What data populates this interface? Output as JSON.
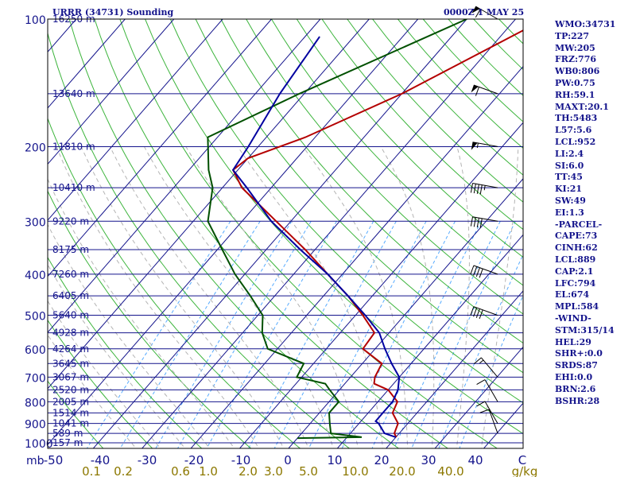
{
  "header": {
    "title": "URRR (34731) Sounding",
    "time": "0000Z  1 MAY 25"
  },
  "indices": [
    "WMO:34731",
    "TP:227",
    "MW:205",
    "FRZ:776",
    "WB0:806",
    "PW:0.75",
    "RH:59.1",
    "MAXT:20.1",
    "TH:5483",
    "L57:5.6",
    "LCL:952",
    "LI:2.4",
    "SI:6.0",
    "TT:45",
    "KI:21",
    "SW:49",
    "EI:1.3",
    "-PARCEL-",
    "CAPE:73",
    "CINH:62",
    "LCL:889",
    "CAP:2.1",
    "LFC:794",
    "EL:674",
    "MPL:584",
    "-WIND-",
    "STM:315/14",
    "HEL:29",
    "SHR+:0.0",
    "SRDS:87",
    "EHI:0.0",
    "BRN:2.6",
    "BSHR:28"
  ],
  "colors": {
    "frame": "#000000",
    "isobar": "#14148c",
    "isotherm": "#14148c",
    "dry_adiabat": "#3cb43c",
    "moist_adiabat": "#b4b4b4",
    "mixing_ratio": "#55aaff",
    "temperature": "#b40000",
    "dewpoint": "#005000",
    "parcel": "#0000a0",
    "axis_text": "#14148c",
    "mixing_text": "#8c7800"
  },
  "chart_data": {
    "type": "skew-t log-p",
    "y_axis": {
      "scale": "log",
      "ylim": [
        1050,
        100
      ],
      "pressure_labels": [
        100,
        200,
        300,
        400,
        500,
        600,
        700,
        800,
        900,
        1000
      ],
      "pressure_unit": "mb"
    },
    "x_axis": {
      "temperature_ticks": [
        "-50",
        "-40",
        "-30",
        "-20",
        "-10",
        "0",
        "10",
        "20",
        "30",
        "40",
        "C"
      ]
    },
    "mixing_ratio_labels": [
      "0.1",
      "0.2",
      "0.6",
      "1.0",
      "2.0",
      "3.0",
      "5.0",
      "10.0",
      "20.0",
      "40.0",
      "g/kg"
    ],
    "height_labels": [
      {
        "p": 100,
        "label": "16250 m"
      },
      {
        "p": 150,
        "label": "13640 m"
      },
      {
        "p": 200,
        "label": "11810 m"
      },
      {
        "p": 250,
        "label": "10410 m"
      },
      {
        "p": 300,
        "label": "9220 m"
      },
      {
        "p": 350,
        "label": "8175 m"
      },
      {
        "p": 400,
        "label": "7260 m"
      },
      {
        "p": 450,
        "label": "6405 m"
      },
      {
        "p": 500,
        "label": "5640 m"
      },
      {
        "p": 550,
        "label": "4928 m"
      },
      {
        "p": 600,
        "label": "4264 m"
      },
      {
        "p": 650,
        "label": "3645 m"
      },
      {
        "p": 700,
        "label": "3067 m"
      },
      {
        "p": 750,
        "label": "2520 m"
      },
      {
        "p": 800,
        "label": "2005 m"
      },
      {
        "p": 850,
        "label": "1514 m"
      },
      {
        "p": 900,
        "label": "1041 m"
      },
      {
        "p": 950,
        "label": "589 m"
      },
      {
        "p": 1000,
        "label": "157 m"
      }
    ],
    "series": [
      {
        "name": "Temperature",
        "points": [
          [
            100,
            -24
          ],
          [
            150,
            -40
          ],
          [
            190,
            -52
          ],
          [
            213,
            -60
          ],
          [
            227,
            -61
          ],
          [
            250,
            -56
          ],
          [
            300,
            -43
          ],
          [
            350,
            -32
          ],
          [
            400,
            -23
          ],
          [
            450,
            -15
          ],
          [
            500,
            -8.5
          ],
          [
            550,
            -3
          ],
          [
            600,
            -2.5
          ],
          [
            650,
            4
          ],
          [
            700,
            5
          ],
          [
            725,
            6
          ],
          [
            750,
            10
          ],
          [
            800,
            14
          ],
          [
            850,
            15
          ],
          [
            900,
            18
          ],
          [
            950,
            19
          ],
          [
            970,
            20.1
          ]
        ]
      },
      {
        "name": "Dewpoint",
        "points": [
          [
            100,
            -40
          ],
          [
            150,
            -61
          ],
          [
            190,
            -72
          ],
          [
            227,
            -66
          ],
          [
            250,
            -62
          ],
          [
            300,
            -57
          ],
          [
            350,
            -49
          ],
          [
            400,
            -42
          ],
          [
            450,
            -35
          ],
          [
            500,
            -29
          ],
          [
            550,
            -26
          ],
          [
            600,
            -22
          ],
          [
            650,
            -12
          ],
          [
            700,
            -11
          ],
          [
            725,
            -4
          ],
          [
            750,
            -2
          ],
          [
            800,
            2
          ],
          [
            850,
            2
          ],
          [
            900,
            4
          ],
          [
            950,
            6
          ],
          [
            970,
            13
          ],
          [
            975,
            0
          ]
        ]
      },
      {
        "name": "Parcel",
        "points": [
          [
            110,
            -67
          ],
          [
            150,
            -65
          ],
          [
            200,
            -62
          ],
          [
            227,
            -61
          ],
          [
            250,
            -55
          ],
          [
            300,
            -44
          ],
          [
            350,
            -33
          ],
          [
            400,
            -23
          ],
          [
            450,
            -15
          ],
          [
            500,
            -8
          ],
          [
            550,
            -2
          ],
          [
            600,
            2
          ],
          [
            650,
            6
          ],
          [
            700,
            10
          ],
          [
            750,
            12
          ],
          [
            800,
            13
          ],
          [
            850,
            13
          ],
          [
            889,
            13
          ],
          [
            900,
            14
          ],
          [
            950,
            17
          ],
          [
            970,
            20
          ]
        ]
      }
    ],
    "wind_barbs": [
      {
        "p": 100,
        "dir": 300,
        "speed": 60
      },
      {
        "p": 150,
        "dir": 290,
        "speed": 60
      },
      {
        "p": 200,
        "dir": 280,
        "speed": 55
      },
      {
        "p": 250,
        "dir": 280,
        "speed": 45
      },
      {
        "p": 300,
        "dir": 280,
        "speed": 40
      },
      {
        "p": 400,
        "dir": 290,
        "speed": 40
      },
      {
        "p": 500,
        "dir": 290,
        "speed": 40
      },
      {
        "p": 700,
        "dir": 320,
        "speed": 15
      },
      {
        "p": 800,
        "dir": 330,
        "speed": 10
      },
      {
        "p": 900,
        "dir": 330,
        "speed": 10
      },
      {
        "p": 950,
        "dir": 340,
        "speed": 10
      }
    ]
  }
}
